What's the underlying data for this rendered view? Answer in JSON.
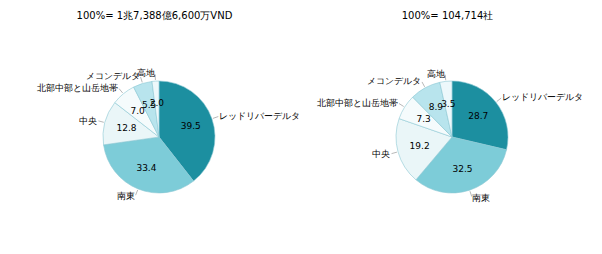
{
  "chart_data": [
    {
      "type": "pie",
      "title": "100%= 1兆7,388億6,600万VND",
      "categories": [
        "レッドリバーデルタ",
        "南東",
        "中央",
        "北部中部と山岳地帯",
        "メコンデルタ",
        "高地"
      ],
      "values": [
        39.5,
        33.4,
        12.8,
        7.0,
        5.5,
        2.0
      ],
      "value_labels": [
        "39.5",
        "33.4",
        "12.8",
        "7.0",
        "5.5",
        "2.0"
      ],
      "colors": [
        "#1c8fa0",
        "#7dccd8",
        "#eaf6f8",
        "#f5fbfc",
        "#b8e4ed",
        "#edf8fb"
      ],
      "data_labels": true
    },
    {
      "type": "pie",
      "title": "100%= 104,714社",
      "categories": [
        "レッドリバーデルタ",
        "南東",
        "中央",
        "北部中部と山岳地帯",
        "メコンデルタ",
        "高地"
      ],
      "values": [
        28.7,
        32.5,
        19.2,
        7.3,
        8.9,
        3.5
      ],
      "colors": [
        "#1c8fa0",
        "#7dccd8",
        "#eaf6f8",
        "#f5fbfc",
        "#b8e4ed",
        "#edf8fb"
      ],
      "data_labels": true
    }
  ]
}
